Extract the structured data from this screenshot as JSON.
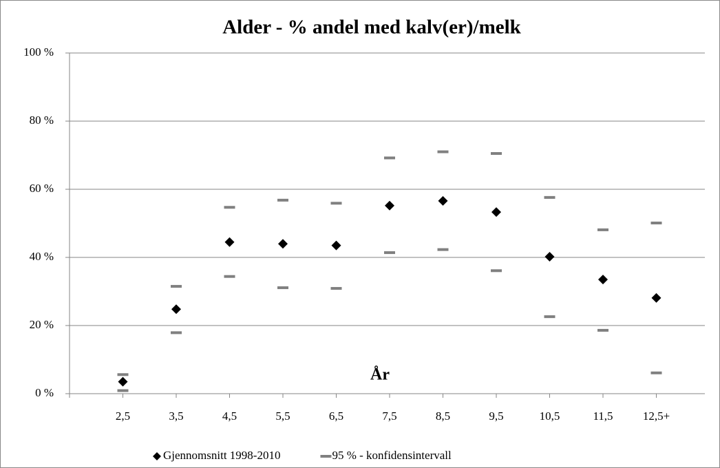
{
  "chart_data": {
    "type": "scatter",
    "title": "Alder - % andel med kalv(er)/melk",
    "annotation": "År",
    "categories": [
      null,
      "2,5",
      "3,5",
      "4,5",
      "5,5",
      "6,5",
      "7,5",
      "8,5",
      "9,5",
      "10,5",
      "11,5",
      "12,5+"
    ],
    "series": [
      {
        "name": "Gjennomsnitt 1998-2010",
        "color": "#000000",
        "marker": "diamond",
        "values": [
          null,
          3.5,
          24.8,
          44.5,
          44.0,
          43.5,
          55.2,
          56.6,
          53.3,
          40.2,
          33.5,
          28.1
        ]
      },
      {
        "name": "95 % - konfidensintervall",
        "color": "#808080",
        "marker": "dash",
        "high": [
          null,
          5.6,
          31.5,
          54.7,
          56.8,
          55.9,
          69.2,
          71.0,
          70.5,
          57.6,
          48.1,
          50.1
        ],
        "low": [
          null,
          0.9,
          17.9,
          34.4,
          31.1,
          30.9,
          41.4,
          42.3,
          36.1,
          22.6,
          18.6,
          6.1
        ]
      }
    ],
    "ylim": [
      0,
      100
    ],
    "yticks": [
      {
        "value": 0,
        "label": "0 %"
      },
      {
        "value": 20,
        "label": "20 %"
      },
      {
        "value": 40,
        "label": "40 %"
      },
      {
        "value": 60,
        "label": "60 %"
      },
      {
        "value": 80,
        "label": "80 %"
      },
      {
        "value": 100,
        "label": "100 %"
      }
    ],
    "grid": true,
    "legend": "bottom"
  }
}
